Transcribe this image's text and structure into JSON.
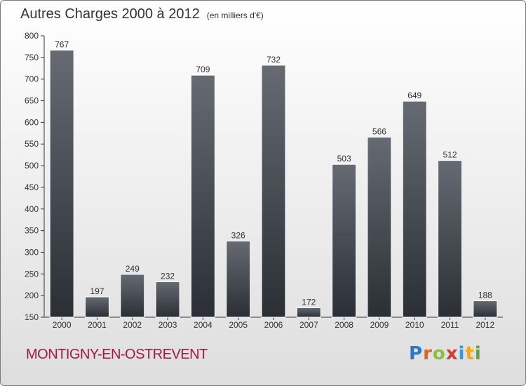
{
  "page": {
    "title": "Autres Charges 2000 à 2012",
    "subtitle": "(en milliers d'€)",
    "location": "MONTIGNY-EN-OSTREVENT",
    "logo_text": "Proxiti",
    "logo_colors": [
      "#2c78c8",
      "#e0631e",
      "#8bbf3c",
      "#d43a2f",
      "#2c9be0",
      "#f2a81d",
      "#5fa33a"
    ]
  },
  "chart_data": {
    "type": "bar",
    "title": "Autres Charges 2000 à 2012",
    "subtitle": "(en milliers d'€)",
    "categories": [
      "2000",
      "2001",
      "2002",
      "2003",
      "2004",
      "2005",
      "2006",
      "2007",
      "2008",
      "2009",
      "2010",
      "2011",
      "2012"
    ],
    "values": [
      767,
      197,
      249,
      232,
      709,
      326,
      732,
      172,
      503,
      566,
      649,
      512,
      188
    ],
    "ylim": [
      150,
      800
    ],
    "yticks": [
      150,
      200,
      250,
      300,
      350,
      400,
      450,
      500,
      550,
      600,
      650,
      700,
      750,
      800
    ],
    "grid": false,
    "bar_color_top": "#666a72",
    "bar_color_bottom": "#2a2e35"
  }
}
